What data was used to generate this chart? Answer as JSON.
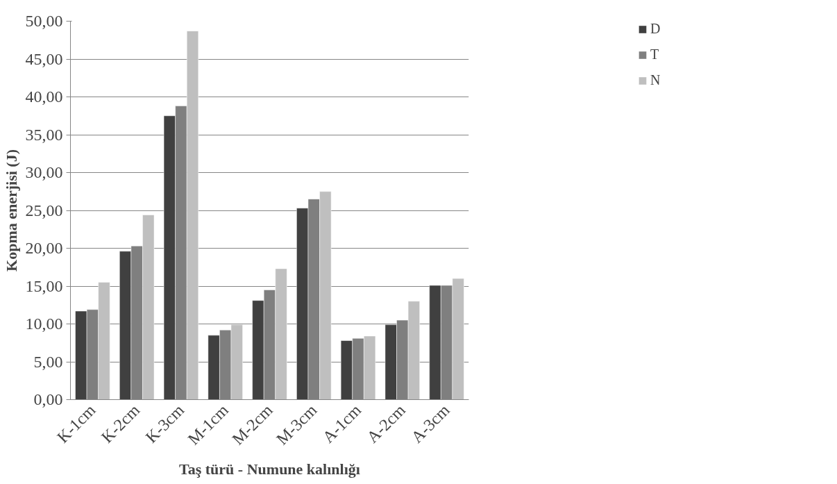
{
  "chart_data": {
    "type": "bar",
    "xlabel": "Taş türü - Numune kalınlığı",
    "ylabel": "Kopma enerjisi (J)",
    "categories": [
      "K-1cm",
      "K-2cm",
      "K-3cm",
      "M-1cm",
      "M-2cm",
      "M-3cm",
      "A-1cm",
      "A-2cm",
      "A-3cm"
    ],
    "series": [
      {
        "name": "D",
        "color": "#404040",
        "values": [
          11.7,
          19.6,
          37.5,
          8.5,
          13.1,
          25.3,
          7.8,
          9.9,
          15.1
        ]
      },
      {
        "name": "T",
        "color": "#7f7f7f",
        "values": [
          11.9,
          20.3,
          38.8,
          9.2,
          14.5,
          26.5,
          8.1,
          10.5,
          15.1
        ]
      },
      {
        "name": "N",
        "color": "#bfbfbf",
        "values": [
          15.5,
          24.4,
          48.7,
          9.9,
          17.3,
          27.5,
          8.4,
          13.0,
          16.0
        ]
      }
    ],
    "ylim": [
      0,
      50
    ],
    "yticks": [
      {
        "value": 0,
        "label": "0,00"
      },
      {
        "value": 5,
        "label": "5,00"
      },
      {
        "value": 10,
        "label": "10,00"
      },
      {
        "value": 15,
        "label": "15,00"
      },
      {
        "value": 20,
        "label": "20,00"
      },
      {
        "value": 25,
        "label": "25,00"
      },
      {
        "value": 30,
        "label": "30,00"
      },
      {
        "value": 35,
        "label": "35,00"
      },
      {
        "value": 40,
        "label": "40,00"
      },
      {
        "value": 45,
        "label": "45,00"
      },
      {
        "value": 50,
        "label": "50,00"
      }
    ],
    "grid": "y",
    "legend": "top right"
  }
}
